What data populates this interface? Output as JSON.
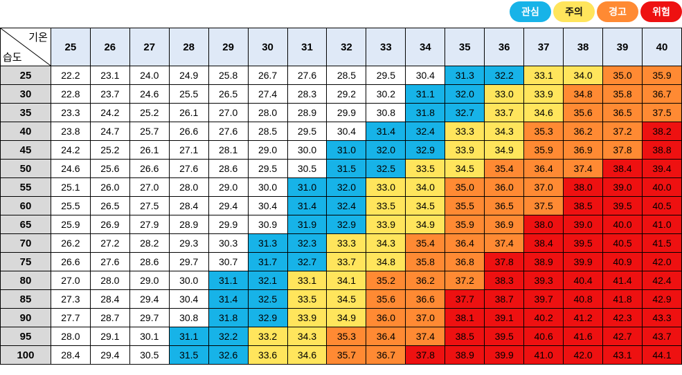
{
  "legend": [
    {
      "label": "관심",
      "color": "#17b3e8",
      "text_white": true
    },
    {
      "label": "주의",
      "color": "#ffe55c",
      "text_white": false
    },
    {
      "label": "경고",
      "color": "#ff8a33",
      "text_white": true
    },
    {
      "label": "위험",
      "color": "#ee1111",
      "text_white": true
    }
  ],
  "corner": {
    "col_label": "기온",
    "row_label": "습도"
  },
  "colors": {
    "none": "#ffffff",
    "caution": "#17b3e8",
    "watch": "#ffe55c",
    "warning": "#ff8a33",
    "danger": "#ee1111"
  },
  "temperatures": [
    "25",
    "26",
    "27",
    "28",
    "29",
    "30",
    "31",
    "32",
    "33",
    "34",
    "35",
    "36",
    "37",
    "38",
    "39",
    "40"
  ],
  "humidities": [
    "25",
    "30",
    "35",
    "40",
    "45",
    "50",
    "55",
    "60",
    "65",
    "70",
    "75",
    "80",
    "85",
    "90",
    "95",
    "100"
  ],
  "table": [
    [
      "22.2",
      "23.1",
      "24.0",
      "24.9",
      "25.8",
      "26.7",
      "27.6",
      "28.5",
      "29.5",
      "30.4",
      "31.3",
      "32.2",
      "33.1",
      "34.0",
      "35.0",
      "35.9"
    ],
    [
      "22.8",
      "23.7",
      "24.6",
      "25.5",
      "26.5",
      "27.4",
      "28.3",
      "29.2",
      "30.2",
      "31.1",
      "32.0",
      "33.0",
      "33.9",
      "34.8",
      "35.8",
      "36.7"
    ],
    [
      "23.3",
      "24.2",
      "25.2",
      "26.1",
      "27.0",
      "28.0",
      "28.9",
      "29.9",
      "30.8",
      "31.8",
      "32.7",
      "33.7",
      "34.6",
      "35.6",
      "36.5",
      "37.5"
    ],
    [
      "23.8",
      "24.7",
      "25.7",
      "26.6",
      "27.6",
      "28.5",
      "29.5",
      "30.4",
      "31.4",
      "32.4",
      "33.3",
      "34.3",
      "35.3",
      "36.2",
      "37.2",
      "38.2"
    ],
    [
      "24.2",
      "25.2",
      "26.1",
      "27.1",
      "28.1",
      "29.0",
      "30.0",
      "31.0",
      "32.0",
      "32.9",
      "33.9",
      "34.9",
      "35.9",
      "36.9",
      "37.8",
      "38.8"
    ],
    [
      "24.6",
      "25.6",
      "26.6",
      "27.6",
      "28.6",
      "29.5",
      "30.5",
      "31.5",
      "32.5",
      "33.5",
      "34.5",
      "35.4",
      "36.4",
      "37.4",
      "38.4",
      "39.4"
    ],
    [
      "25.1",
      "26.0",
      "27.0",
      "28.0",
      "29.0",
      "30.0",
      "31.0",
      "32.0",
      "33.0",
      "34.0",
      "35.0",
      "36.0",
      "37.0",
      "38.0",
      "39.0",
      "40.0"
    ],
    [
      "25.5",
      "26.5",
      "27.5",
      "28.4",
      "29.4",
      "30.4",
      "31.4",
      "32.4",
      "33.5",
      "34.5",
      "35.5",
      "36.5",
      "37.5",
      "38.5",
      "39.5",
      "40.5"
    ],
    [
      "25.9",
      "26.9",
      "27.9",
      "28.9",
      "29.9",
      "30.9",
      "31.9",
      "32.9",
      "33.9",
      "34.9",
      "35.9",
      "36.9",
      "38.0",
      "39.0",
      "40.0",
      "41.0"
    ],
    [
      "26.2",
      "27.2",
      "28.2",
      "29.3",
      "30.3",
      "31.3",
      "32.3",
      "33.3",
      "34.3",
      "35.4",
      "36.4",
      "37.4",
      "38.4",
      "39.5",
      "40.5",
      "41.5"
    ],
    [
      "26.6",
      "27.6",
      "28.6",
      "29.7",
      "30.7",
      "31.7",
      "32.7",
      "33.7",
      "34.8",
      "35.8",
      "36.8",
      "37.8",
      "38.9",
      "39.9",
      "40.9",
      "42.0"
    ],
    [
      "27.0",
      "28.0",
      "29.0",
      "30.0",
      "31.1",
      "32.1",
      "33.1",
      "34.1",
      "35.2",
      "36.2",
      "37.2",
      "38.3",
      "39.3",
      "40.4",
      "41.4",
      "42.4"
    ],
    [
      "27.3",
      "28.4",
      "29.4",
      "30.4",
      "31.4",
      "32.5",
      "33.5",
      "34.5",
      "35.6",
      "36.6",
      "37.7",
      "38.7",
      "39.7",
      "40.8",
      "41.8",
      "42.9"
    ],
    [
      "27.7",
      "28.7",
      "29.7",
      "30.8",
      "31.8",
      "32.9",
      "33.9",
      "34.9",
      "36.0",
      "37.0",
      "38.1",
      "39.1",
      "40.2",
      "41.2",
      "42.3",
      "43.3"
    ],
    [
      "28.0",
      "29.1",
      "30.1",
      "31.1",
      "32.2",
      "33.2",
      "34.3",
      "35.3",
      "36.4",
      "37.4",
      "38.5",
      "39.5",
      "40.6",
      "41.6",
      "42.7",
      "43.7"
    ],
    [
      "28.4",
      "29.4",
      "30.5",
      "31.5",
      "32.6",
      "33.6",
      "34.6",
      "35.7",
      "36.7",
      "37.8",
      "38.9",
      "39.9",
      "41.0",
      "42.0",
      "43.1",
      "44.1"
    ]
  ],
  "first_col_per_level": {
    "caution": [
      10,
      9,
      9,
      8,
      7,
      7,
      6,
      6,
      6,
      5,
      5,
      4,
      4,
      4,
      3,
      3
    ],
    "watch": [
      12,
      11,
      11,
      10,
      10,
      9,
      8,
      8,
      8,
      7,
      7,
      6,
      6,
      6,
      5,
      5
    ],
    "warning": [
      14,
      13,
      13,
      12,
      12,
      11,
      10,
      10,
      10,
      9,
      9,
      8,
      8,
      8,
      7,
      7
    ],
    "danger": [
      16,
      16,
      16,
      15,
      15,
      14,
      13,
      13,
      12,
      12,
      11,
      11,
      10,
      10,
      10,
      9
    ]
  }
}
